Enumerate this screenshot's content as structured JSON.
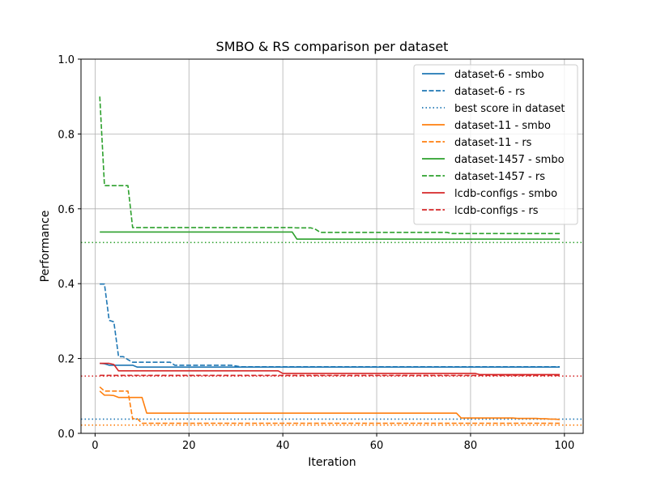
{
  "chart_data": {
    "type": "line",
    "title": "SMBO & RS comparison per dataset",
    "xlabel": "Iteration",
    "ylabel": "Performance",
    "xlim": [
      -3,
      104
    ],
    "ylim": [
      0,
      1
    ],
    "xticks": [
      0,
      20,
      40,
      60,
      80,
      100
    ],
    "yticks": [
      0.0,
      0.2,
      0.4,
      0.6,
      0.8,
      1.0
    ],
    "ytick_labels": [
      "0.0",
      "0.2",
      "0.4",
      "0.6",
      "0.8",
      "1.0"
    ],
    "grid": true,
    "legend_position": "top-right",
    "series": [
      {
        "name": "dataset-6 - smbo",
        "color": "#1f77b4",
        "style": "solid",
        "points": [
          [
            1,
            0.187
          ],
          [
            2,
            0.186
          ],
          [
            3,
            0.182
          ],
          [
            7,
            0.182
          ],
          [
            8,
            0.182
          ],
          [
            9,
            0.177
          ],
          [
            99,
            0.177
          ]
        ]
      },
      {
        "name": "dataset-6 - rs",
        "color": "#1f77b4",
        "style": "dashed",
        "points": [
          [
            1,
            0.399
          ],
          [
            2,
            0.399
          ],
          [
            3,
            0.302
          ],
          [
            4,
            0.298
          ],
          [
            5,
            0.205
          ],
          [
            7,
            0.197
          ],
          [
            8,
            0.19
          ],
          [
            16,
            0.19
          ],
          [
            17,
            0.182
          ],
          [
            30,
            0.18
          ],
          [
            31,
            0.178
          ],
          [
            99,
            0.178
          ]
        ]
      },
      {
        "name": "best score in dataset",
        "color": "#1f77b4",
        "style": "dotted",
        "points": [
          [
            -3,
            0.038
          ],
          [
            104,
            0.038
          ]
        ]
      },
      {
        "name": "dataset-11 - smbo",
        "color": "#ff7f0e",
        "style": "solid",
        "points": [
          [
            1,
            0.113
          ],
          [
            2,
            0.102
          ],
          [
            4,
            0.101
          ],
          [
            5,
            0.096
          ],
          [
            10,
            0.096
          ],
          [
            11,
            0.054
          ],
          [
            77,
            0.054
          ],
          [
            78,
            0.041
          ],
          [
            90,
            0.04
          ],
          [
            95,
            0.039
          ],
          [
            97,
            0.038
          ],
          [
            99,
            0.037
          ]
        ]
      },
      {
        "name": "dataset-11 - rs",
        "color": "#ff7f0e",
        "style": "dashed",
        "points": [
          [
            1,
            0.124
          ],
          [
            2,
            0.113
          ],
          [
            7,
            0.113
          ],
          [
            8,
            0.039
          ],
          [
            9,
            0.039
          ],
          [
            10,
            0.027
          ],
          [
            99,
            0.027
          ]
        ]
      },
      {
        "name": "",
        "color": "#ff7f0e",
        "style": "dotted",
        "points": [
          [
            -3,
            0.022
          ],
          [
            104,
            0.022
          ]
        ]
      },
      {
        "name": "dataset-1457 - smbo",
        "color": "#2ca02c",
        "style": "solid",
        "points": [
          [
            1,
            0.538
          ],
          [
            42,
            0.538
          ],
          [
            43,
            0.519
          ],
          [
            99,
            0.519
          ]
        ]
      },
      {
        "name": "dataset-1457 - rs",
        "color": "#2ca02c",
        "style": "dashed",
        "points": [
          [
            1,
            0.9
          ],
          [
            2,
            0.662
          ],
          [
            7,
            0.662
          ],
          [
            8,
            0.55
          ],
          [
            42,
            0.55
          ],
          [
            43,
            0.549
          ],
          [
            47,
            0.545
          ],
          [
            48,
            0.537
          ],
          [
            75,
            0.537
          ],
          [
            76,
            0.534
          ],
          [
            99,
            0.534
          ]
        ]
      },
      {
        "name": "",
        "color": "#2ca02c",
        "style": "dotted",
        "points": [
          [
            -3,
            0.51
          ],
          [
            104,
            0.51
          ]
        ]
      },
      {
        "name": "lcdb-configs - smbo",
        "color": "#d62728",
        "style": "solid",
        "points": [
          [
            1,
            0.187
          ],
          [
            4,
            0.184
          ],
          [
            5,
            0.167
          ],
          [
            39,
            0.167
          ],
          [
            40,
            0.16
          ],
          [
            81,
            0.16
          ],
          [
            82,
            0.157
          ],
          [
            99,
            0.157
          ]
        ]
      },
      {
        "name": "lcdb-configs - rs",
        "color": "#d62728",
        "style": "dashed",
        "points": [
          [
            1,
            0.155
          ],
          [
            99,
            0.155
          ]
        ]
      },
      {
        "name": "",
        "color": "#d62728",
        "style": "dotted",
        "points": [
          [
            -3,
            0.153
          ],
          [
            104,
            0.153
          ]
        ]
      }
    ]
  }
}
